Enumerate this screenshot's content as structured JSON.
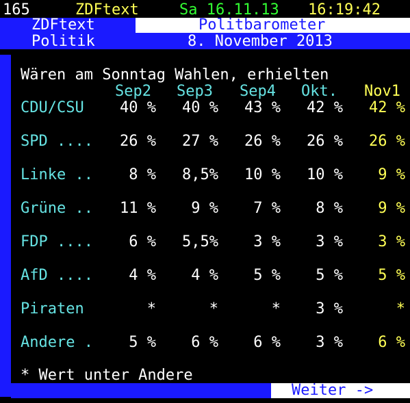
{
  "header": {
    "page": "165",
    "service": "ZDFtext",
    "date": "Sa 16.11.13",
    "time": "16:19:42"
  },
  "banner": {
    "channel": "ZDFtext",
    "title": "Politbarometer",
    "section": "Politik",
    "subtitle": "8. November 2013"
  },
  "intro": "Wären am Sonntag Wahlen, erhielten",
  "columns": [
    "Sep2",
    "Sep3",
    "Sep4",
    "Okt.",
    "Nov1"
  ],
  "rows": [
    {
      "party": "CDU/CSU",
      "values": [
        "40 %",
        "40 %",
        "43 %",
        "42 %",
        "42 %"
      ]
    },
    {
      "party": "SPD ....",
      "values": [
        "26 %",
        "27 %",
        "26 %",
        "26 %",
        "26 %"
      ]
    },
    {
      "party": "Linke ..",
      "values": [
        "8 %",
        "8,5%",
        "10 %",
        "10 %",
        "9 %"
      ]
    },
    {
      "party": "Grüne ..",
      "values": [
        "11 %",
        "9 %",
        "7 %",
        "8 %",
        "9 %"
      ]
    },
    {
      "party": "FDP ....",
      "values": [
        "6 %",
        "5,5%",
        "3 %",
        "3 %",
        "3 %"
      ]
    },
    {
      "party": "AfD ....",
      "values": [
        "4 %",
        "4 %",
        "5 %",
        "5 %",
        "5 %"
      ]
    },
    {
      "party": "Piraten",
      "values": [
        "*",
        "*",
        "*",
        "3 %",
        "*"
      ]
    },
    {
      "party": "Andere .",
      "values": [
        "5 %",
        "6 %",
        "6 %",
        "3 %",
        "6 %"
      ]
    }
  ],
  "footnote": "* Wert unter Andere",
  "footer": {
    "next_label": "Weiter ->"
  },
  "colors": {
    "background": "#000000",
    "blue": "#1a1aff",
    "cyan": "#66e3e3",
    "yellow": "#ffff55",
    "green": "#33ff33",
    "white": "#ffffff"
  }
}
